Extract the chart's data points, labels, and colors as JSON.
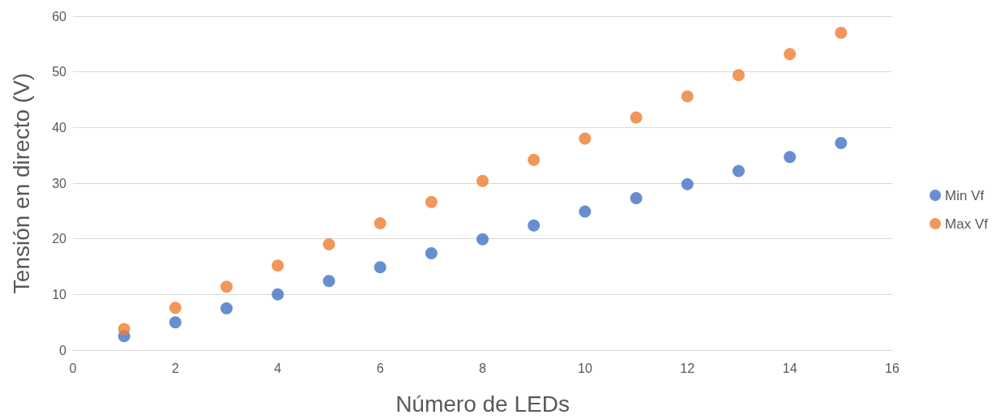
{
  "chart_data": {
    "type": "scatter",
    "xlabel": "Número de LEDs",
    "ylabel": "Tensión en directo (V)",
    "x": [
      1,
      2,
      3,
      4,
      5,
      6,
      7,
      8,
      9,
      10,
      11,
      12,
      13,
      14,
      15
    ],
    "series": [
      {
        "name": "Min Vf",
        "color": "#4472c4",
        "values": [
          2.5,
          5,
          7.5,
          10,
          12.4,
          14.9,
          17.4,
          19.9,
          22.4,
          24.9,
          27.3,
          29.8,
          32.2,
          34.7,
          37.2
        ]
      },
      {
        "name": "Max Vf",
        "color": "#ed7d31",
        "values": [
          3.8,
          7.6,
          11.4,
          15.2,
          19,
          22.8,
          26.6,
          30.4,
          34.2,
          38,
          41.8,
          45.6,
          49.4,
          53.2,
          57
        ]
      }
    ],
    "xlim": [
      0,
      16
    ],
    "xticks": [
      0,
      2,
      4,
      6,
      8,
      10,
      12,
      14,
      16
    ],
    "ylim": [
      0,
      60
    ],
    "yticks": [
      0,
      10,
      20,
      30,
      40,
      50,
      60
    ],
    "grid": "y",
    "legend": "right",
    "marker": "circle"
  }
}
